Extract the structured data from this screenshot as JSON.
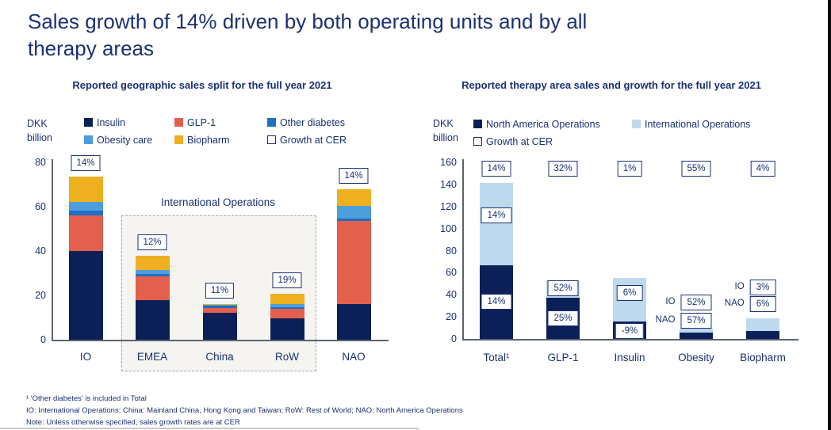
{
  "page_title_lines": [
    "Sales growth of 14% driven by both operating units and by all",
    "therapy areas"
  ],
  "footnotes": [
    "¹ 'Other diabetes' is included in Total",
    "IO: International Operations; China: Mainland China, Hong Kong and Taiwan; RoW: Rest of World; NAO: North America Operations",
    "Note: Unless otherwise specified, sales growth rates are at CER"
  ],
  "colors": {
    "text_navy": "#1a3173",
    "bar_navy": "#0c2058",
    "glp1_coral": "#e2604c",
    "other_diabetes_blue": "#1f6fc4",
    "obesity_blue": "#4d9edb",
    "biopharm_amber": "#eeb021",
    "international_light_blue": "#bdd9ee",
    "axis_gray": "#5a6570"
  },
  "chart_data": [
    {
      "type": "bar",
      "stacked": true,
      "title": "Reported geographic sales split for the full year 2021",
      "unit_lines": [
        "DKK",
        "billion"
      ],
      "unit": "DKK billion",
      "ylim": [
        0,
        80
      ],
      "yticks": [
        0,
        20,
        40,
        60,
        80
      ],
      "categories": [
        "IO",
        "EMEA",
        "China",
        "RoW",
        "NAO"
      ],
      "series": [
        {
          "name": "Insulin",
          "color": "#0c2058",
          "values": [
            40,
            18,
            12,
            9.5,
            16
          ]
        },
        {
          "name": "GLP-1",
          "color": "#e2604c",
          "values": [
            16,
            10.5,
            2.3,
            4.5,
            37.5
          ]
        },
        {
          "name": "Other diabetes",
          "color": "#1f6fc4",
          "values": [
            2.3,
            1.3,
            1.2,
            0.8,
            1.2
          ]
        },
        {
          "name": "Obesity care",
          "color": "#4d9edb",
          "values": [
            3.8,
            1.7,
            0.3,
            1.1,
            5.5
          ]
        },
        {
          "name": "Biopharm",
          "color": "#eeb021",
          "values": [
            11.5,
            6.3,
            0.3,
            4.7,
            7.5
          ]
        }
      ],
      "growth_at_cer": [
        "14%",
        "12%",
        "11%",
        "19%",
        "14%"
      ],
      "legend": [
        {
          "label": "Insulin",
          "color": "#0c2058"
        },
        {
          "label": "GLP-1",
          "color": "#e2604c"
        },
        {
          "label": "Other diabetes",
          "color": "#1f6fc4"
        },
        {
          "label": "Obesity care",
          "color": "#4d9edb"
        },
        {
          "label": "Biopharm",
          "color": "#eeb021"
        },
        {
          "label": "Growth at CER",
          "outline": true
        }
      ],
      "region_box": {
        "label": "International Operations",
        "categories": [
          "EMEA",
          "China",
          "RoW"
        ]
      }
    },
    {
      "type": "bar",
      "stacked": true,
      "title": "Reported therapy area sales and growth for the full year 2021",
      "unit_lines": [
        "DKK",
        "billion"
      ],
      "unit": "DKK billion",
      "ylim": [
        0,
        160
      ],
      "yticks": [
        0,
        20,
        40,
        60,
        80,
        100,
        120,
        140,
        160
      ],
      "categories": [
        "Total¹",
        "GLP-1",
        "Insulin",
        "Obesity",
        "Biopharm"
      ],
      "series": [
        {
          "name": "North America Operations",
          "color": "#0c2058",
          "values": [
            67,
            37,
            16,
            6,
            7
          ]
        },
        {
          "name": "International Operations",
          "color": "#bdd9ee",
          "values": [
            74,
            16,
            39,
            3,
            12
          ]
        }
      ],
      "growth_at_cer": [
        "14%",
        "32%",
        "1%",
        "55%",
        "4%"
      ],
      "legend": [
        {
          "label": "North America Operations",
          "color": "#0c2058"
        },
        {
          "label": "International Operations",
          "color": "#bdd9ee"
        },
        {
          "label": "Growth at CER",
          "outline": true
        }
      ],
      "segment_growth_labels": [
        {
          "category": "Total¹",
          "text": "14%",
          "at": 112
        },
        {
          "category": "Total¹",
          "text": "14%",
          "at": 34
        },
        {
          "category": "GLP-1",
          "text": "52%",
          "at": 46
        },
        {
          "category": "GLP-1",
          "text": "25%",
          "at": 18.5
        },
        {
          "category": "Insulin",
          "text": "6%",
          "at": 42
        },
        {
          "category": "Insulin",
          "text": "-9%",
          "at": 7
        },
        {
          "category": "Obesity",
          "text": "52%",
          "prefix": "IO",
          "at": 33
        },
        {
          "category": "Obesity",
          "text": "57%",
          "prefix": "NAO",
          "at": 16.5
        },
        {
          "category": "Biopharm",
          "text": "3%",
          "prefix": "IO",
          "at": 47
        },
        {
          "category": "Biopharm",
          "text": "6%",
          "prefix": "NAO",
          "at": 31.5
        }
      ]
    }
  ]
}
